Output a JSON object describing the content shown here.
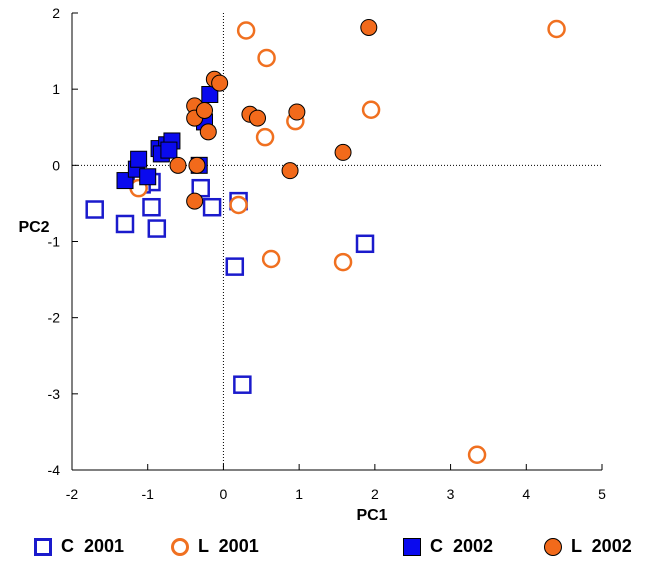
{
  "chart_data": {
    "type": "scatter",
    "title": "",
    "xlabel": "PC1",
    "ylabel": "PC2",
    "xlim": [
      -2,
      5
    ],
    "ylim": [
      -4,
      2
    ],
    "x_ticks": [
      "-2",
      "-1",
      "0",
      "1",
      "2",
      "3",
      "4",
      "5"
    ],
    "y_ticks": [
      "-4",
      "-3",
      "-2",
      "-1",
      "0",
      "1",
      "2"
    ],
    "reference_lines": {
      "x": 0,
      "y": 0,
      "style": "dotted"
    },
    "grid": false,
    "legend_position": "bottom",
    "series": [
      {
        "name": "C  2001",
        "marker": "square",
        "filled": false,
        "color": "#1a1acc",
        "points": [
          [
            -1.7,
            -0.58
          ],
          [
            -1.3,
            -0.77
          ],
          [
            -0.95,
            -0.55
          ],
          [
            -0.88,
            -0.83
          ],
          [
            -0.3,
            -0.3
          ],
          [
            -0.15,
            -0.55
          ],
          [
            0.2,
            -0.47
          ],
          [
            0.15,
            -1.33
          ],
          [
            0.25,
            -2.88
          ],
          [
            1.87,
            -1.03
          ],
          [
            -0.95,
            -0.22
          ],
          [
            -1.08,
            -0.25
          ]
        ]
      },
      {
        "name": "L  2001",
        "marker": "circle",
        "filled": false,
        "color": "#f07020",
        "points": [
          [
            0.3,
            1.77
          ],
          [
            0.57,
            1.41
          ],
          [
            0.95,
            0.58
          ],
          [
            1.95,
            0.73
          ],
          [
            0.55,
            0.37
          ],
          [
            0.2,
            -0.52
          ],
          [
            0.63,
            -1.23
          ],
          [
            1.58,
            -1.27
          ],
          [
            4.4,
            1.79
          ],
          [
            3.35,
            -3.8
          ],
          [
            -1.12,
            -0.3
          ]
        ]
      },
      {
        "name": "C  2002",
        "marker": "square",
        "filled": true,
        "color": "#0a0aee",
        "points": [
          [
            -1.3,
            -0.2
          ],
          [
            -1.15,
            -0.05
          ],
          [
            -1.12,
            0.08
          ],
          [
            -1.0,
            -0.15
          ],
          [
            -0.85,
            0.22
          ],
          [
            -0.75,
            0.27
          ],
          [
            -0.68,
            0.32
          ],
          [
            -0.82,
            0.15
          ],
          [
            -0.72,
            0.2
          ],
          [
            -0.25,
            0.57
          ],
          [
            -0.18,
            0.93
          ],
          [
            -0.32,
            0.0
          ]
        ]
      },
      {
        "name": "L  2002",
        "marker": "circle",
        "filled": true,
        "color": "#f26a1b",
        "points": [
          [
            -0.38,
            0.78
          ],
          [
            -0.38,
            0.62
          ],
          [
            -0.25,
            0.72
          ],
          [
            -0.2,
            0.44
          ],
          [
            -0.12,
            1.13
          ],
          [
            -0.05,
            1.08
          ],
          [
            0.35,
            0.67
          ],
          [
            0.45,
            0.62
          ],
          [
            0.97,
            0.7
          ],
          [
            1.58,
            0.17
          ],
          [
            1.92,
            1.81
          ],
          [
            -0.6,
            0.0
          ],
          [
            -0.35,
            0.0
          ],
          [
            0.88,
            -0.07
          ],
          [
            -0.38,
            -0.47
          ]
        ]
      }
    ]
  }
}
